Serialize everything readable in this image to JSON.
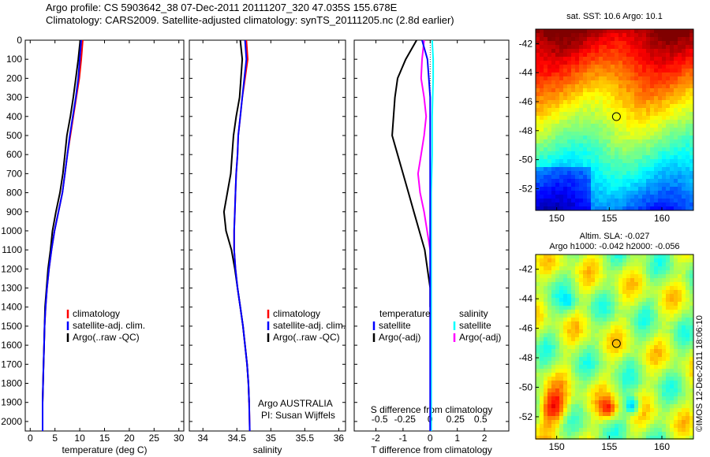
{
  "header": {
    "line1": "Argo profile: CS 5903642_38 07-Dec-2011 20111207_320 47.035S 155.678E",
    "line2": "Climatology: CARS2009. Satellite-adjusted climatology: synTS_20111205.nc (2.8d earlier)"
  },
  "colors": {
    "clim": "#ff0000",
    "sat": "#0000ff",
    "argo": "#000000",
    "sal_sat": "#00ffff",
    "sal_argo": "#ff00ff"
  },
  "depth_ticks": [
    0,
    100,
    200,
    300,
    400,
    500,
    600,
    700,
    800,
    900,
    1000,
    1100,
    1200,
    1300,
    1400,
    1500,
    1600,
    1700,
    1800,
    1900,
    2000
  ],
  "panels": {
    "temperature": {
      "xlabel": "temperature (deg C)",
      "xticks": [
        "0",
        "5",
        "10",
        "15",
        "20",
        "25",
        "30"
      ],
      "legend": [
        "climatology",
        "satellite-adj. clim.",
        "Argo(..raw -QC)"
      ]
    },
    "salinity": {
      "xlabel": "salinity",
      "xticks": [
        "34",
        "34.5",
        "35",
        "35.5",
        "36"
      ],
      "legend": [
        "climatology",
        "satellite-adj. clim.",
        "Argo(..raw -QC)"
      ],
      "note1": "Argo AUSTRALIA",
      "note2": "PI: Susan Wijffels"
    },
    "difference": {
      "xlabel": "T difference from climatology",
      "xticks": [
        "-2",
        "-1",
        "0",
        "1",
        "2"
      ],
      "s_label": "S difference from climatology",
      "s_ticks": [
        "-0.5",
        "-0.25",
        "0",
        "0.25",
        "0.5"
      ],
      "legend_t_title": "temperature",
      "legend_t": [
        "satellite",
        "Argo(-adj)"
      ],
      "legend_s_title": "salinity",
      "legend_s": [
        "satellite",
        "Argo(-adj)"
      ]
    }
  },
  "maps": {
    "sst_title": "sat. SST: 10.6  Argo: 10.1",
    "sla_title1": "Altim. SLA: -0.027",
    "sla_title2": "Argo h1000: -0.042  h2000: -0.056",
    "yticks": [
      "-42",
      "-44",
      "-46",
      "-48",
      "-50",
      "-52"
    ],
    "xticks": [
      "150",
      "155",
      "160"
    ],
    "stamp": "©IMOS 12-Dec-2011 18:06:10"
  },
  "chart_data": [
    {
      "type": "line",
      "xlabel": "temperature (deg C)",
      "ylabel": "",
      "xlim": [
        -1,
        31
      ],
      "ylim": [
        2050,
        0
      ],
      "series": [
        {
          "name": "climatology",
          "x": [
            10.6,
            10.3,
            9.9,
            9.3,
            8.7,
            8.1,
            7.5,
            7,
            6.5,
            5.7,
            4.9,
            4.3,
            3.8,
            3.4,
            3.1,
            2.9,
            2.8,
            2.7,
            2.6,
            2.5,
            2.5
          ],
          "y": [
            0,
            100,
            200,
            300,
            400,
            500,
            600,
            700,
            800,
            900,
            1000,
            1100,
            1200,
            1300,
            1400,
            1500,
            1600,
            1700,
            1800,
            1900,
            2050
          ]
        },
        {
          "name": "satellite-adj. clim.",
          "x": [
            10.3,
            10,
            9.7,
            9.2,
            8.6,
            8,
            7.5,
            7,
            6.5,
            5.7,
            4.9,
            4.3,
            3.8,
            3.4,
            3.1,
            2.9,
            2.8,
            2.7,
            2.6,
            2.5,
            2.5
          ],
          "y": [
            0,
            100,
            200,
            300,
            400,
            500,
            600,
            700,
            800,
            900,
            1000,
            1100,
            1200,
            1300,
            1400,
            1500,
            1600,
            1700,
            1800,
            1900,
            2050
          ]
        },
        {
          "name": "Argo(..raw -QC)",
          "x": [
            10.1,
            9.7,
            9.2,
            8.7,
            8.1,
            7.4,
            7,
            6.6,
            6,
            5.2,
            4.5,
            4.1,
            3.6,
            3.3,
            3,
            2.9,
            2.8,
            2.7,
            2.6,
            2.5
          ],
          "y": [
            0,
            100,
            200,
            300,
            400,
            500,
            600,
            700,
            800,
            900,
            1000,
            1100,
            1200,
            1300,
            1400,
            1500,
            1600,
            1700,
            1800,
            1900
          ]
        }
      ]
    },
    {
      "type": "line",
      "xlabel": "salinity",
      "xlim": [
        33.8,
        36.1
      ],
      "ylim": [
        2050,
        0
      ],
      "series": [
        {
          "name": "climatology",
          "x": [
            34.64,
            34.66,
            34.62,
            34.58,
            34.55,
            34.52,
            34.51,
            34.49,
            34.48,
            34.47,
            34.46,
            34.46,
            34.48,
            34.51,
            34.55,
            34.59,
            34.62,
            34.65,
            34.67,
            34.68,
            34.69
          ],
          "y": [
            0,
            100,
            200,
            300,
            400,
            500,
            600,
            700,
            800,
            900,
            1000,
            1100,
            1200,
            1300,
            1400,
            1500,
            1600,
            1700,
            1800,
            1900,
            2050
          ]
        },
        {
          "name": "satellite-adj. clim.",
          "x": [
            34.62,
            34.64,
            34.61,
            34.58,
            34.55,
            34.52,
            34.51,
            34.49,
            34.48,
            34.47,
            34.46,
            34.46,
            34.48,
            34.51,
            34.55,
            34.59,
            34.62,
            34.65,
            34.67,
            34.68,
            34.69
          ],
          "y": [
            0,
            100,
            200,
            300,
            400,
            500,
            600,
            700,
            800,
            900,
            1000,
            1100,
            1200,
            1300,
            1400,
            1500,
            1600,
            1700,
            1800,
            1900,
            2050
          ]
        },
        {
          "name": "Argo(..raw -QC)",
          "x": [
            34.55,
            34.58,
            34.56,
            34.54,
            34.49,
            34.45,
            34.43,
            34.41,
            34.36,
            34.31,
            34.34,
            34.42,
            34.47,
            34.51,
            34.55,
            34.59,
            34.62,
            34.65,
            34.67,
            34.68
          ],
          "y": [
            0,
            100,
            200,
            300,
            400,
            500,
            600,
            700,
            800,
            900,
            1000,
            1100,
            1200,
            1300,
            1400,
            1500,
            1600,
            1700,
            1800,
            1900
          ]
        }
      ]
    },
    {
      "type": "line",
      "xlabel": "T difference from climatology",
      "xlim": [
        -2.8,
        2.9
      ],
      "ylim": [
        2050,
        0
      ],
      "series": [
        {
          "name": "temperature satellite",
          "x": [
            -0.3,
            -0.2,
            -0.1,
            -0.05,
            0,
            0,
            0,
            0,
            0,
            0,
            0,
            0,
            0,
            0,
            0,
            0,
            0,
            0
          ],
          "y": [
            0,
            50,
            100,
            200,
            300,
            400,
            500,
            600,
            700,
            800,
            900,
            1000,
            1200,
            1400,
            1600,
            1800,
            1900,
            2050
          ]
        },
        {
          "name": "temperature Argo(-adj)",
          "x": [
            -0.5,
            -0.9,
            -1.2,
            -1.3,
            -1.4,
            -1.2,
            -1.0,
            -0.8,
            -0.6,
            -0.4,
            -0.2,
            -0.1,
            0,
            0
          ],
          "y": [
            0,
            100,
            200,
            300,
            500,
            600,
            700,
            800,
            900,
            1000,
            1100,
            1200,
            1300,
            1400
          ]
        },
        {
          "name": "salinity satellite",
          "x": [
            0.02,
            0.03,
            0.03,
            0.02,
            0.02,
            0.01,
            0.01,
            0.01,
            0.01,
            0.01,
            0.01,
            0.01
          ],
          "y": [
            0,
            100,
            200,
            400,
            600,
            800,
            1000,
            1200,
            1400,
            1600,
            1800,
            2050
          ]
        },
        {
          "name": "salinity Argo(-adj)",
          "x": [
            -0.06,
            -0.08,
            -0.09,
            -0.06,
            -0.04,
            -0.06,
            -0.09,
            -0.12,
            -0.1,
            -0.06,
            -0.03,
            0
          ],
          "y": [
            0,
            100,
            200,
            300,
            400,
            500,
            600,
            700,
            800,
            900,
            1000,
            1100
          ]
        }
      ]
    },
    {
      "type": "heatmap",
      "title": "sat. SST: 10.6  Argo: 10.1",
      "xlim": [
        148,
        163
      ],
      "ylim": [
        -53.5,
        -41
      ],
      "xticks": [
        150,
        155,
        160
      ],
      "yticks": [
        -42,
        -44,
        -46,
        -48,
        -50,
        -52
      ],
      "marker": {
        "lon": 155.678,
        "lat": -47.035
      }
    },
    {
      "type": "heatmap",
      "title": "Altim. SLA: -0.027",
      "xlim": [
        148,
        163
      ],
      "ylim": [
        -53.5,
        -41
      ],
      "xticks": [
        150,
        155,
        160
      ],
      "yticks": [
        -42,
        -44,
        -46,
        -48,
        -50,
        -52
      ],
      "marker": {
        "lon": 155.678,
        "lat": -47.035
      }
    }
  ]
}
